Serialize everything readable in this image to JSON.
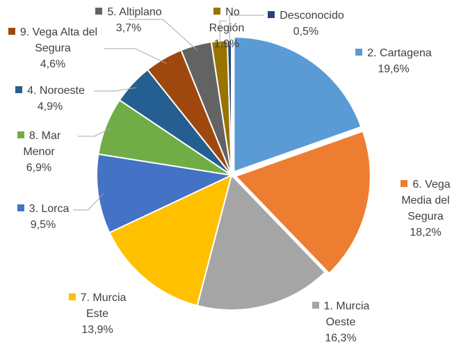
{
  "chart_data": {
    "type": "pie",
    "categories": [
      "2. Cartagena",
      "6. Vega Media del Segura",
      "1. Murcia Oeste",
      "7. Murcia Este",
      "3. Lorca",
      "8. Mar Menor",
      "4. Noroeste",
      "9. Vega Alta del Segura",
      "5. Altiplano",
      "No Región",
      "Desconocido"
    ],
    "values": [
      19.6,
      18.2,
      16.3,
      13.9,
      9.5,
      6.9,
      4.9,
      4.6,
      3.7,
      1.9,
      0.5
    ],
    "value_labels": [
      "19,6%",
      "18,2%",
      "16,3%",
      "13,9%",
      "9,5%",
      "6,9%",
      "4,9%",
      "4,6%",
      "3,7%",
      "1,9%",
      "0,5%"
    ],
    "colors": [
      "#5b9bd5",
      "#ed7d31",
      "#a5a5a5",
      "#ffc000",
      "#4472c4",
      "#70ad47",
      "#255e91",
      "#9e480e",
      "#636363",
      "#997300",
      "#264478"
    ]
  }
}
